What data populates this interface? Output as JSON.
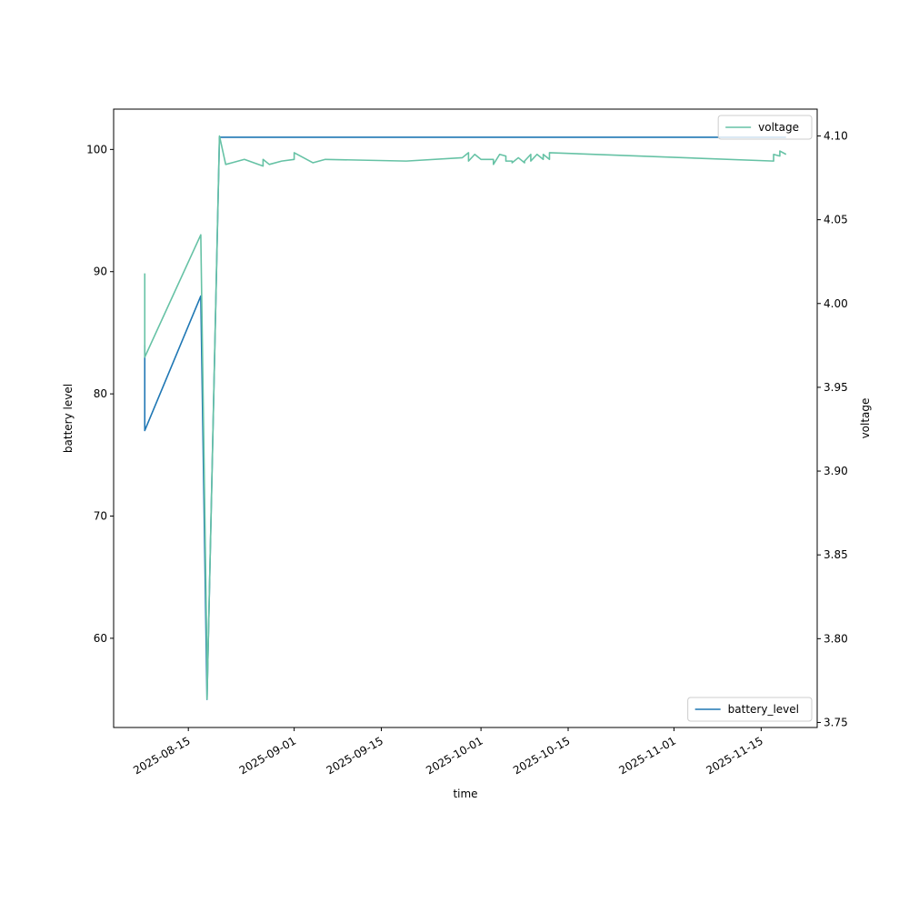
{
  "chart_data": {
    "type": "line",
    "xlabel": "time",
    "ylabel": "battery level",
    "y2label": "voltage",
    "xlim": [
      "2025-08-03",
      "2025-11-24"
    ],
    "xticks": [
      "2025-08-15",
      "2025-09-01",
      "2025-09-15",
      "2025-10-01",
      "2025-10-15",
      "2025-11-01",
      "2025-11-15"
    ],
    "ylim": [
      52.7,
      103.3
    ],
    "yticks": [
      60,
      70,
      80,
      90,
      100
    ],
    "y2lim": [
      3.747,
      4.116
    ],
    "y2ticks": [
      3.75,
      {
        "value": 3.8,
        "label": "3.80"
      },
      3.85,
      {
        "value": 3.9,
        "label": "3.90"
      },
      3.95,
      {
        "value": 4.0,
        "label": "4.00"
      },
      4.05,
      {
        "value": 4.1,
        "label": "4.10"
      }
    ],
    "series": [
      {
        "name": "battery_level",
        "color": "#1f77b4",
        "axis": "y",
        "legend": "lower right",
        "x": [
          "2025-08-08",
          "2025-08-08",
          "2025-08-17",
          "2025-08-18",
          "2025-08-20",
          "2025-11-19"
        ],
        "values": [
          84,
          77,
          88,
          55,
          101,
          101
        ]
      },
      {
        "name": "voltage",
        "color": "#66c2a5",
        "axis": "y2",
        "legend": "upper right",
        "x": [
          "2025-08-08",
          "2025-08-08",
          "2025-08-17",
          "2025-08-18",
          "2025-08-18",
          "2025-08-20",
          "2025-08-21",
          "2025-08-22",
          "2025-08-24",
          "2025-08-27",
          "2025-08-27",
          "2025-08-28",
          "2025-08-30",
          "2025-09-01",
          "2025-09-01",
          "2025-09-04",
          "2025-09-06",
          "2025-09-19",
          "2025-09-28",
          "2025-09-29",
          "2025-09-29",
          "2025-09-30",
          "2025-10-01",
          "2025-10-03",
          "2025-10-03",
          "2025-10-04",
          "2025-10-05",
          "2025-10-05",
          "2025-10-06",
          "2025-10-06",
          "2025-10-07",
          "2025-10-08",
          "2025-10-08",
          "2025-10-09",
          "2025-10-09",
          "2025-10-10",
          "2025-10-11",
          "2025-10-11",
          "2025-10-12",
          "2025-10-12",
          "2025-11-17",
          "2025-11-17",
          "2025-11-18",
          "2025-11-18",
          "2025-11-19"
        ],
        "values": [
          4.018,
          3.968,
          4.041,
          3.785,
          3.764,
          4.1,
          4.083,
          4.084,
          4.086,
          4.082,
          4.086,
          4.083,
          4.085,
          4.086,
          4.09,
          4.084,
          4.086,
          4.085,
          4.087,
          4.09,
          4.085,
          4.089,
          4.086,
          4.086,
          4.083,
          4.089,
          4.088,
          4.085,
          4.085,
          4.084,
          4.087,
          4.084,
          4.085,
          4.089,
          4.085,
          4.089,
          4.086,
          4.089,
          4.086,
          4.09,
          4.085,
          4.089,
          4.088,
          4.091,
          4.089
        ]
      }
    ]
  }
}
